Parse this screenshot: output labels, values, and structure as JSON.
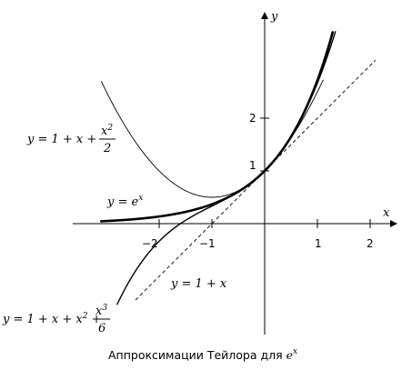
{
  "axes": {
    "x_label": "x",
    "y_label": "y",
    "x_ticks": [
      "−2",
      "−1",
      "1",
      "2"
    ],
    "y_ticks": [
      "1",
      "2"
    ]
  },
  "labels": {
    "exp": {
      "lhs": "y = ",
      "base": "e",
      "sup": "x"
    },
    "linear": "y = 1 + x",
    "quadratic": {
      "lhs": "y = 1 + x + ",
      "num": "x",
      "num_sup": "2",
      "den": "2"
    },
    "cubic": {
      "lhs": "y = 1 + x + x",
      "lhs_sup": "2",
      "mid": " + ",
      "num": "x",
      "num_sup": "3",
      "den": "6"
    }
  },
  "caption": {
    "text": "Аппроксимации Тейлора для ",
    "base": "e",
    "sup": "x"
  }
}
